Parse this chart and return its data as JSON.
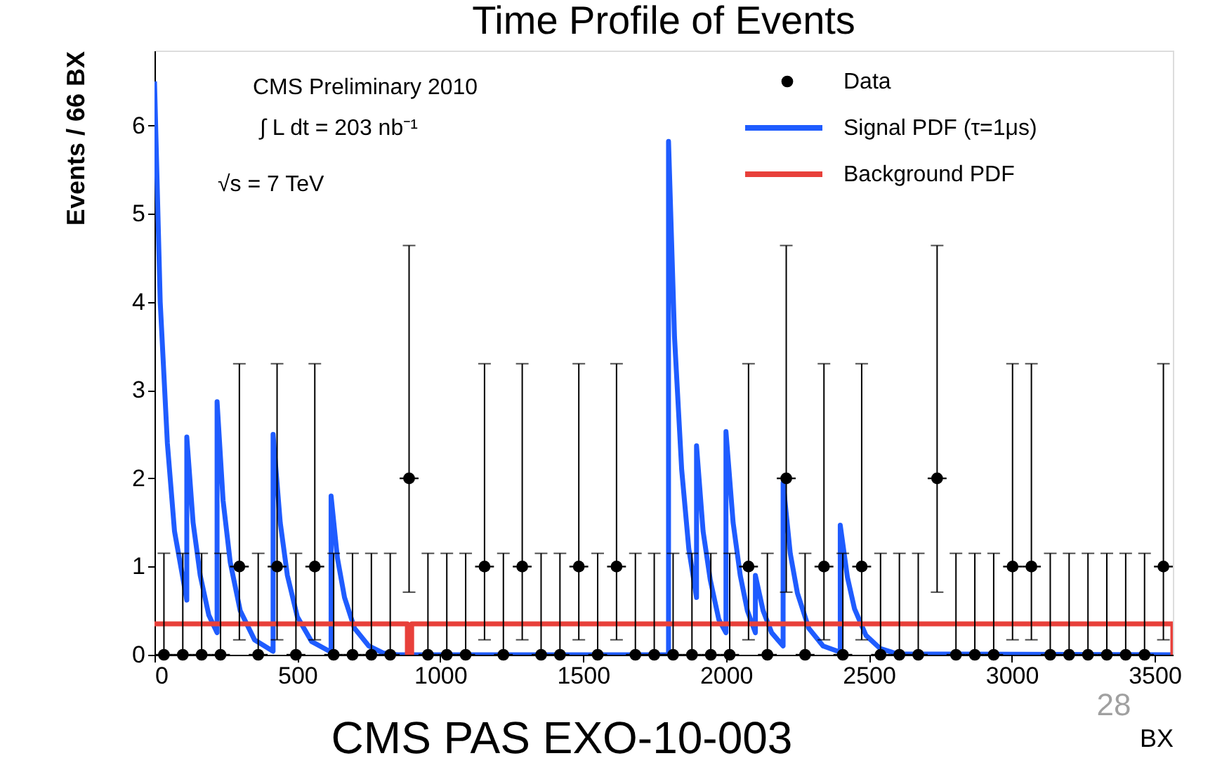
{
  "chart_data": {
    "type": "scatter",
    "title": "Time Profile of Events",
    "xlabel": "BX",
    "ylabel": "Events / 66 BX",
    "annotations": [
      "CMS Preliminary 2010",
      "∫ L dt = 203 nb⁻¹",
      "√s = 7 TeV",
      "CMS PAS EXO-10-003",
      "28"
    ],
    "xlim": [
      0,
      3564
    ],
    "ylim": [
      0,
      6.85
    ],
    "xticks": [
      0,
      500,
      1000,
      1500,
      2000,
      2500,
      3000,
      3500
    ],
    "yticks": [
      0,
      1,
      2,
      3,
      4,
      5,
      6
    ],
    "legend": "top right",
    "x": [
      33,
      99,
      165,
      231,
      297,
      363,
      429,
      495,
      561,
      627,
      693,
      759,
      825,
      891,
      957,
      1023,
      1089,
      1155,
      1221,
      1287,
      1353,
      1419,
      1485,
      1551,
      1617,
      1683,
      1749,
      1815,
      1881,
      1947,
      2013,
      2079,
      2145,
      2211,
      2277,
      2343,
      2409,
      2475,
      2541,
      2607,
      2673,
      2739,
      2805,
      2871,
      2937,
      3003,
      3069,
      3135,
      3201,
      3267,
      3333,
      3399,
      3465,
      3531
    ],
    "series": [
      {
        "name": "Data",
        "marker": "circle",
        "color": "#000000",
        "values": [
          0,
          0,
          0,
          0,
          1,
          0,
          1,
          0,
          1,
          0,
          0,
          0,
          0,
          2,
          0,
          0,
          0,
          1,
          0,
          1,
          0,
          0,
          1,
          0,
          1,
          0,
          0,
          0,
          0,
          0,
          0,
          1,
          0,
          2,
          0,
          1,
          0,
          1,
          0,
          0,
          0,
          2,
          0,
          0,
          0,
          1,
          1,
          0,
          0,
          0,
          0,
          0,
          0,
          1
        ],
        "errors": [
          [
            0,
            1.15
          ],
          [
            0,
            1.15
          ],
          [
            0,
            1.15
          ],
          [
            0,
            1.15
          ],
          [
            0.17,
            3.3
          ],
          [
            0,
            1.15
          ],
          [
            0.17,
            3.3
          ],
          [
            0,
            1.15
          ],
          [
            0.17,
            3.3
          ],
          [
            0,
            1.15
          ],
          [
            0,
            1.15
          ],
          [
            0,
            1.15
          ],
          [
            0,
            1.15
          ],
          [
            0.71,
            4.64
          ],
          [
            0,
            1.15
          ],
          [
            0,
            1.15
          ],
          [
            0,
            1.15
          ],
          [
            0.17,
            3.3
          ],
          [
            0,
            1.15
          ],
          [
            0.17,
            3.3
          ],
          [
            0,
            1.15
          ],
          [
            0,
            1.15
          ],
          [
            0.17,
            3.3
          ],
          [
            0,
            1.15
          ],
          [
            0.17,
            3.3
          ],
          [
            0,
            1.15
          ],
          [
            0,
            1.15
          ],
          [
            0,
            1.15
          ],
          [
            0,
            1.15
          ],
          [
            0,
            1.15
          ],
          [
            0,
            1.15
          ],
          [
            0.17,
            3.3
          ],
          [
            0,
            1.15
          ],
          [
            0.71,
            4.64
          ],
          [
            0,
            1.15
          ],
          [
            0.17,
            3.3
          ],
          [
            0,
            1.15
          ],
          [
            0.17,
            3.3
          ],
          [
            0,
            1.15
          ],
          [
            0,
            1.15
          ],
          [
            0,
            1.15
          ],
          [
            0.71,
            4.64
          ],
          [
            0,
            1.15
          ],
          [
            0,
            1.15
          ],
          [
            0,
            1.15
          ],
          [
            0.17,
            3.3
          ],
          [
            0.17,
            3.3
          ],
          [
            0,
            1.15
          ],
          [
            0,
            1.15
          ],
          [
            0,
            1.15
          ],
          [
            0,
            1.15
          ],
          [
            0,
            1.15
          ],
          [
            0,
            1.15
          ],
          [
            0.17,
            3.3
          ]
        ],
        "xerrors": [
          33,
          33,
          33,
          33,
          33,
          33,
          33,
          33,
          33,
          33,
          33,
          33,
          33,
          33,
          33,
          33,
          33,
          33,
          33,
          33,
          33,
          33,
          33,
          33,
          33,
          33,
          33,
          33,
          33,
          33,
          33,
          33,
          33,
          33,
          33,
          33,
          33,
          33,
          33,
          33,
          33,
          33,
          33,
          33,
          33,
          33,
          33,
          33,
          33,
          33,
          33,
          33,
          33,
          33
        ]
      },
      {
        "name": "Signal PDF (τ=1μs)",
        "type": "line",
        "color": "#1f5cff",
        "x": [
          0,
          20,
          45,
          70,
          113,
          113,
          135,
          160,
          190,
          219,
          219,
          240,
          265,
          300,
          350,
          415,
          415,
          440,
          465,
          500,
          550,
          618,
          618,
          640,
          665,
          700,
          750,
          800,
          850,
          1799,
          1799,
          1820,
          1845,
          1870,
          1897,
          1897,
          1920,
          1945,
          1975,
          2000,
          2000,
          2025,
          2050,
          2075,
          2103,
          2103,
          2130,
          2160,
          2200,
          2200,
          2225,
          2250,
          2290,
          2340,
          2400,
          2400,
          2425,
          2450,
          2490,
          2540,
          2600,
          3564
        ],
        "values": [
          6.5,
          4.0,
          2.4,
          1.4,
          0.62,
          2.47,
          1.5,
          0.9,
          0.45,
          0.25,
          2.87,
          1.75,
          1.05,
          0.5,
          0.17,
          0.04,
          2.5,
          1.5,
          0.9,
          0.43,
          0.15,
          0.03,
          1.8,
          1.1,
          0.65,
          0.3,
          0.1,
          0.02,
          0,
          0,
          5.82,
          3.6,
          2.1,
          1.2,
          0.65,
          2.37,
          1.4,
          0.85,
          0.4,
          0.25,
          2.53,
          1.5,
          0.9,
          0.5,
          0.25,
          0.9,
          0.5,
          0.25,
          0.1,
          1.95,
          1.15,
          0.7,
          0.3,
          0.1,
          0.03,
          1.47,
          0.88,
          0.52,
          0.22,
          0.07,
          0.01,
          0
        ]
      },
      {
        "name": "Background PDF",
        "type": "line",
        "color": "#e8403a",
        "x": [
          0,
          885,
          885,
          900,
          900,
          3564,
          3564
        ],
        "values": [
          0.35,
          0.35,
          0,
          0,
          0.35,
          0.35,
          0
        ]
      }
    ]
  }
}
